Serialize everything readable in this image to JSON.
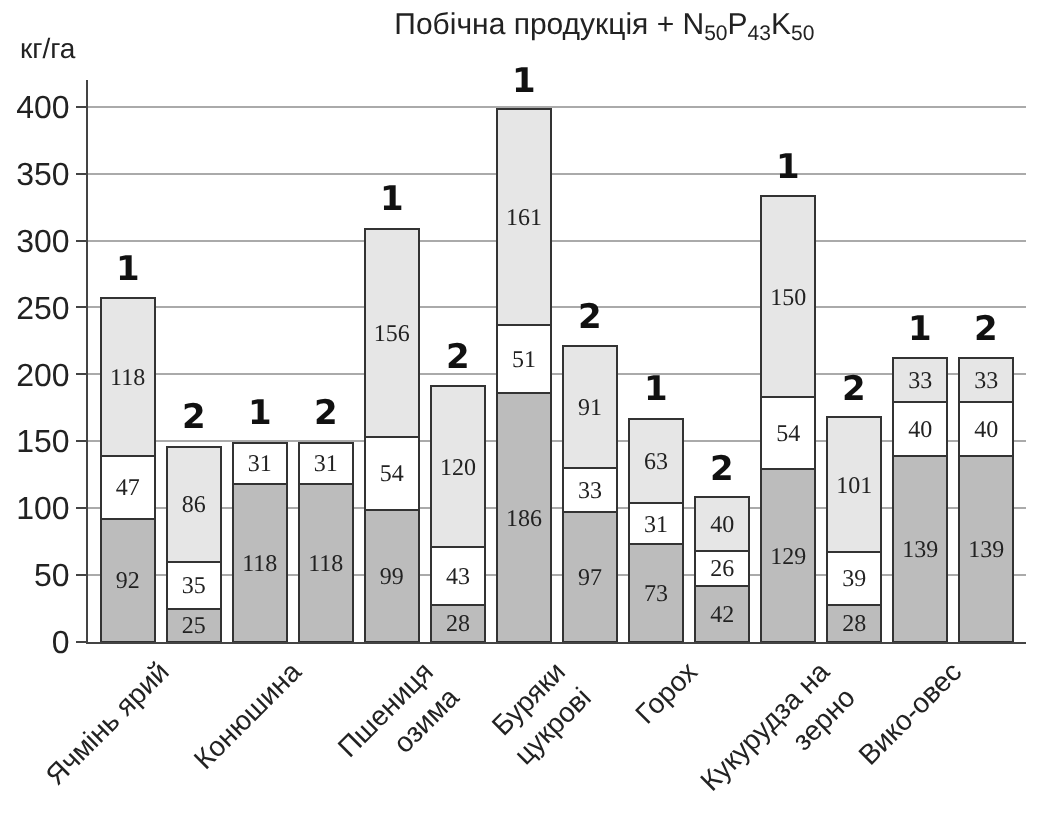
{
  "chart_data": {
    "type": "bar",
    "stacked": true,
    "title": "Побічна продукція + N$_{50}$P$_{43}$K$_{50}$",
    "ylabel": "кг/га",
    "categories": [
      "Ячмінь ярий",
      null,
      "Конюшина",
      null,
      "Пшениця озима",
      null,
      "Буряки цукрові",
      null,
      "Горох",
      null,
      "Кукурудза на зерно",
      null,
      "Вико-овес",
      null
    ],
    "series": [
      {
        "color": "#bcbcbc",
        "values": [
          92,
          25,
          118,
          118,
          99,
          28,
          186,
          97,
          73,
          42,
          129,
          28,
          139,
          139
        ]
      },
      {
        "color": "#ffffff",
        "values": [
          47,
          35,
          31,
          31,
          54,
          43,
          51,
          33,
          31,
          26,
          54,
          39,
          40,
          40
        ]
      },
      {
        "color": "#e6e6e6",
        "values": [
          118,
          86,
          null,
          null,
          156,
          120,
          161,
          91,
          63,
          40,
          150,
          101,
          33,
          33
        ]
      }
    ],
    "annotations": [
      "1",
      "2",
      "1",
      "2",
      "1",
      "2",
      "1",
      "2",
      "1",
      "2",
      "1",
      "2",
      "1",
      "2"
    ],
    "data_labels": true,
    "ylim": [
      0,
      420
    ],
    "yticks": [
      0,
      50,
      100,
      150,
      200,
      250,
      300,
      350,
      400
    ],
    "grid": "y"
  }
}
